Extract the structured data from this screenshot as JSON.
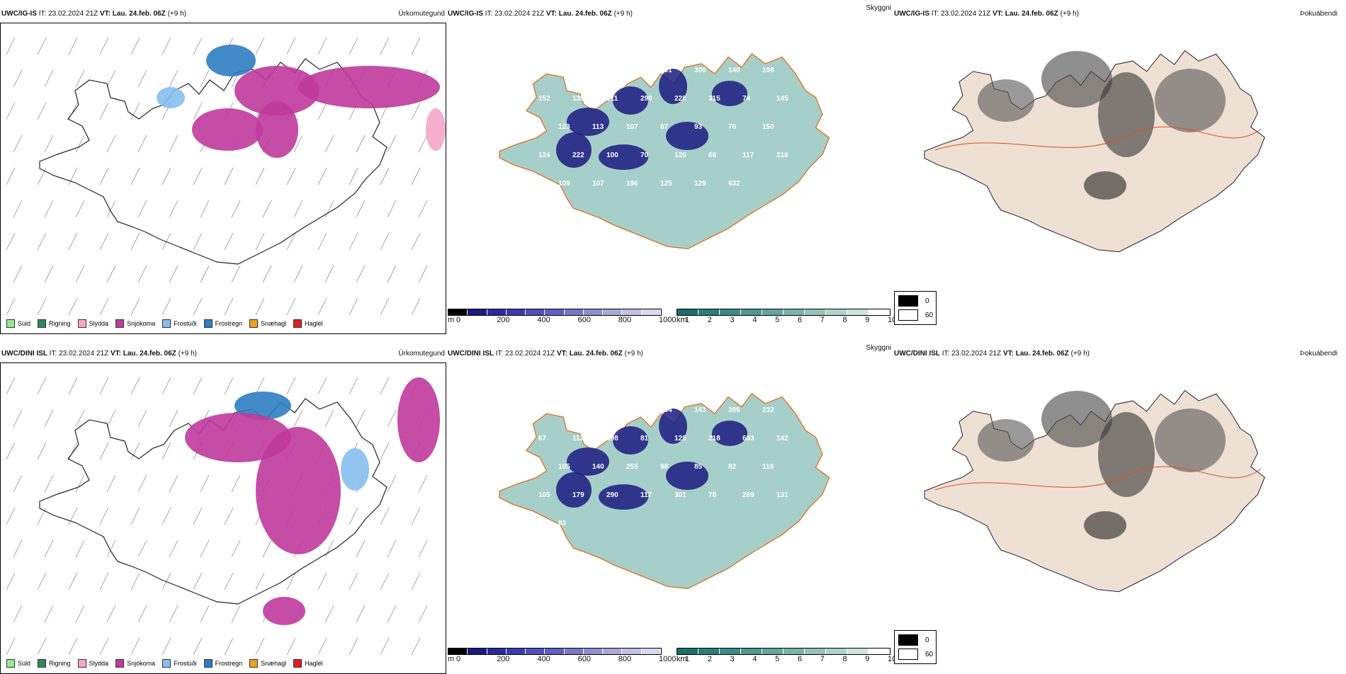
{
  "panels": {
    "top": {
      "precip": {
        "model": "UWC/IG-IS",
        "it": "IT: 23.02.2024 21Z",
        "vt_label": "VT:",
        "vt": "Lau. 24.feb. 06Z",
        "lead": "(+9 h)",
        "right_title": "Úrkomutegund"
      },
      "cloud": {
        "model": "UWC/IG-IS",
        "it": "IT: 23.02.2024 21Z",
        "vt_label": "VT:",
        "vt": "Lau. 24.feb. 06Z",
        "lead": "(+9 h)",
        "right_title": "Skyggni",
        "labels": [
          "460",
          "128",
          "233",
          "210",
          "291",
          "300",
          "140",
          "198",
          "152",
          "139",
          "211",
          "290",
          "228",
          "315",
          "74",
          "145",
          "155",
          "123",
          "113",
          "107",
          "67",
          "93",
          "70",
          "150",
          "124",
          "222",
          "100",
          "70",
          "120",
          "66",
          "117",
          "216",
          "105",
          "109",
          "107",
          "196",
          "125",
          "129",
          "632"
        ]
      },
      "fog": {
        "model": "UWC/IG-IS",
        "it": "IT: 23.02.2024 21Z",
        "vt_label": "VT:",
        "vt": "Lau. 24.feb. 06Z",
        "lead": "(+9 h)",
        "right_title": "Þokuábendi"
      }
    },
    "bottom": {
      "precip": {
        "model": "UWC/DINI ISL",
        "it": "IT: 23.02.2024 21Z",
        "vt_label": "VT:",
        "vt": "Lau. 24.feb. 06Z",
        "lead": "(+9 h)",
        "right_title": "Úrkomutegund"
      },
      "cloud": {
        "model": "UWC/DINI ISL",
        "it": "IT: 23.02.2024 21Z",
        "vt_label": "VT:",
        "vt": "Lau. 24.feb. 06Z",
        "lead": "(+9 h)",
        "right_title": "Skyggni",
        "labels": [
          "388",
          "104",
          "124",
          "186",
          "304",
          "143",
          "386",
          "232",
          "67",
          "112",
          "108",
          "81",
          "128",
          "218",
          "683",
          "142",
          "103",
          "105",
          "140",
          "255",
          "98",
          "85",
          "82",
          "116",
          "105",
          "179",
          "290",
          "117",
          "301",
          "78",
          "269",
          "131",
          "150",
          "83"
        ]
      },
      "fog": {
        "model": "UWC/DINI ISL",
        "it": "IT: 23.02.2024 21Z",
        "vt_label": "VT:",
        "vt": "Lau. 24.feb. 06Z",
        "lead": "(+9 h)",
        "right_title": "Þokuábendi"
      }
    }
  },
  "precip_legend": [
    {
      "label": "Súld",
      "color": "#90ee90"
    },
    {
      "label": "Rigning",
      "color": "#2e8b57"
    },
    {
      "label": "Slydda",
      "color": "#f4a6c8"
    },
    {
      "label": "Snjókoma",
      "color": "#c03a9c"
    },
    {
      "label": "Frostúði",
      "color": "#87bfef"
    },
    {
      "label": "Frostregn",
      "color": "#2f7dc2"
    },
    {
      "label": "Snæhagl",
      "color": "#f0a020"
    },
    {
      "label": "Haglél",
      "color": "#e02020"
    }
  ],
  "cloudbase_bar": {
    "unit": "m",
    "ticks": [
      "0",
      "200",
      "400",
      "600",
      "800",
      "1000"
    ],
    "colors": [
      "#000000",
      "#1a1a80",
      "#2b2b9e",
      "#3b3bb0",
      "#5050b8",
      "#6060c0",
      "#7878c8",
      "#9090d0",
      "#a8a8dc",
      "#c0c0e6",
      "#d8d8f0"
    ]
  },
  "visibility_bar": {
    "unit": "km",
    "ticks": [
      "1",
      "2",
      "3",
      "4",
      "5",
      "6",
      "7",
      "8",
      "9",
      "10"
    ],
    "colors": [
      "#1c6f6a",
      "#2a7f78",
      "#3a8c84",
      "#4e9990",
      "#63a69c",
      "#7bb4aa",
      "#95c3b9",
      "#b0d3ca",
      "#cde3dc",
      "#ffffff"
    ]
  },
  "fog_legend": {
    "values": [
      "0",
      "60"
    ],
    "colors": [
      "#000000",
      "#ffffff"
    ]
  }
}
